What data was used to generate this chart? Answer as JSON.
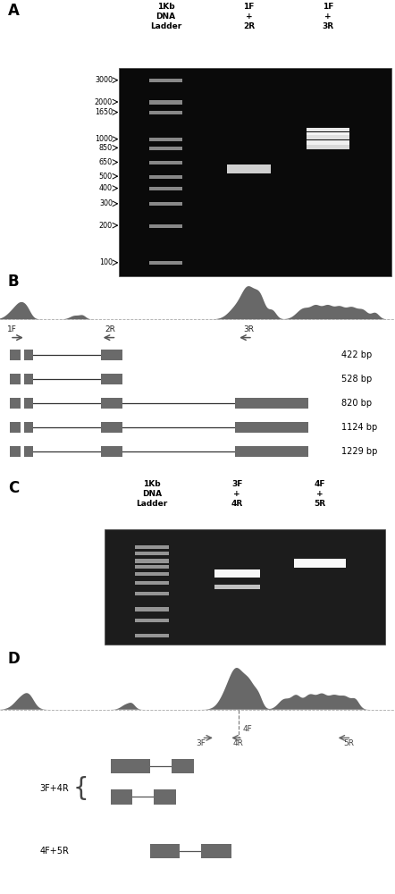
{
  "panel_A": {
    "label": "A",
    "col_headers": [
      "1Kb\nDNA\nLadder",
      "1F\n+\n2R",
      "1F\n+\n3R"
    ],
    "ladder_values": [
      3000,
      2000,
      1650,
      1000,
      850,
      650,
      500,
      400,
      300,
      200,
      100
    ],
    "ladder_labels": [
      "3000",
      "2000",
      "1650",
      "1000",
      "850",
      "650",
      "500",
      "400",
      "300",
      "200",
      "100"
    ],
    "col2_bands_bp": [
      600,
      560
    ],
    "col3_bands_bp": [
      1200,
      1100,
      1050,
      950,
      870
    ],
    "bp_min": 80,
    "bp_max": 3600
  },
  "panel_B": {
    "label": "B",
    "products": [
      {
        "label": "422 bp",
        "far": false
      },
      {
        "label": "528 bp",
        "far": false
      },
      {
        "label": "820 bp",
        "far": true
      },
      {
        "label": "1124 bp",
        "far": true
      },
      {
        "label": "1229 bp",
        "far": true
      }
    ]
  },
  "panel_C": {
    "label": "C",
    "col_headers": [
      "1Kb\nDNA\nLadder",
      "3F\n+\n4R",
      "4F\n+\n5R"
    ],
    "ladder_values": [
      1000,
      850,
      700,
      600,
      500,
      400,
      300,
      200,
      150,
      100
    ],
    "col2_bands_bp": [
      500,
      350
    ],
    "col2_bright": [
      true,
      false
    ],
    "col3_bands_bp": [
      650
    ],
    "col3_bright": [
      true
    ],
    "bp_min": 80,
    "bp_max": 1500
  },
  "panel_D": {
    "label": "D"
  },
  "exon_color": "#6a6a6a",
  "track_color": "#686868",
  "text_color": "#000000"
}
